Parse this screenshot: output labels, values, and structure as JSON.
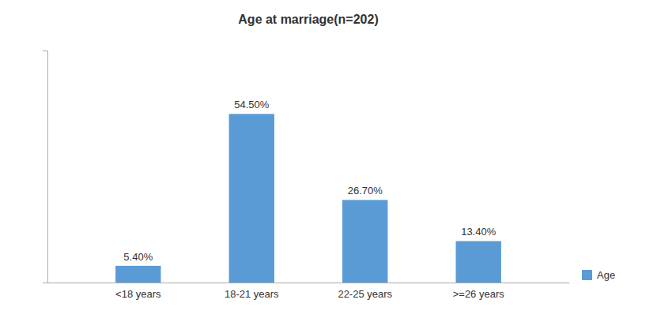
{
  "chart_data": {
    "type": "bar",
    "title": "Age at marriage(n=202)",
    "categories": [
      "<18 years",
      "18-21 years",
      "22-25 years",
      ">=26 years"
    ],
    "series": [
      {
        "name": "Age",
        "color": "#5b9bd5",
        "values": [
          5.4,
          54.5,
          26.7,
          13.4
        ],
        "value_labels": [
          "5.40%",
          "54.50%",
          "26.70%",
          "13.40%"
        ]
      }
    ],
    "ylim": [
      0,
      75
    ],
    "data_labels": true,
    "tick_labels": "x",
    "legend": "right"
  }
}
